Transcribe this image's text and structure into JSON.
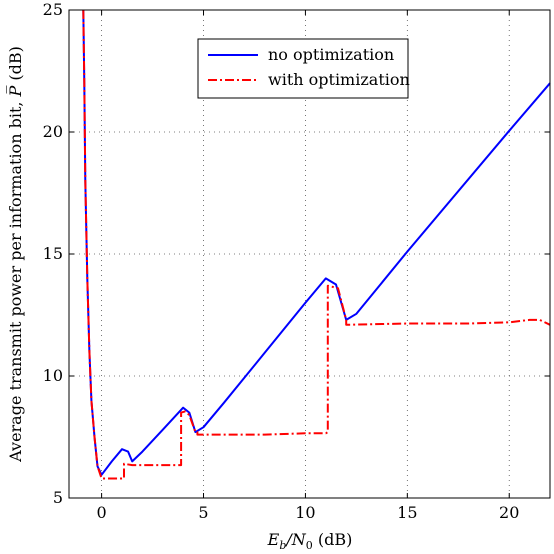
{
  "chart_data": {
    "type": "line",
    "xlabel_parts": {
      "e": "E",
      "b": "b",
      "slash": "/N",
      "zero": "0",
      "unit": " (dB)"
    },
    "ylabel_parts": {
      "text": "Average transmit power per information bit, ",
      "symbol": "P̅",
      "unit": " (dB)"
    },
    "xlim": [
      -1.6,
      22
    ],
    "ylim": [
      5,
      25
    ],
    "xticks": [
      0,
      5,
      10,
      15,
      20
    ],
    "yticks": [
      5,
      10,
      15,
      20,
      25
    ],
    "grid": true,
    "legend_position": "top-center",
    "series": [
      {
        "name": "no optimization",
        "color": "#0000ff",
        "style": "solid",
        "x": [
          -0.9,
          -0.85,
          -0.8,
          -0.7,
          -0.6,
          -0.5,
          -0.35,
          -0.2,
          0.0,
          0.5,
          1.0,
          1.3,
          1.5,
          2.0,
          3.0,
          4.0,
          4.3,
          4.6,
          5.0,
          6.0,
          8.0,
          10.0,
          11.0,
          11.5,
          12.0,
          12.5,
          15.0,
          20.0,
          22.0
        ],
        "y": [
          25.0,
          22.0,
          18.0,
          14.0,
          11.0,
          9.0,
          7.5,
          6.3,
          5.95,
          6.5,
          7.0,
          6.9,
          6.5,
          6.9,
          7.8,
          8.7,
          8.5,
          7.7,
          7.9,
          8.9,
          10.95,
          13.0,
          14.0,
          13.75,
          12.3,
          12.55,
          15.1,
          20.05,
          22.0
        ]
      },
      {
        "name": "with optimization",
        "color": "#ff0000",
        "style": "dashdot",
        "x": [
          -0.9,
          -0.85,
          -0.8,
          -0.7,
          -0.6,
          -0.5,
          -0.35,
          -0.2,
          0.0,
          0.5,
          1.0,
          1.1,
          1.1,
          1.5,
          2.0,
          3.0,
          3.9,
          3.9,
          4.1,
          4.3,
          4.6,
          4.7,
          4.7,
          6.0,
          8.0,
          10.0,
          11.0,
          11.1,
          11.1,
          11.6,
          12.0,
          12.0,
          15.0,
          18.0,
          20.0,
          21.0,
          21.5,
          22.0
        ],
        "y": [
          25.0,
          22.0,
          18.0,
          14.0,
          11.0,
          9.0,
          7.5,
          6.3,
          5.8,
          5.8,
          5.8,
          5.8,
          6.4,
          6.35,
          6.35,
          6.35,
          6.35,
          8.5,
          8.55,
          8.4,
          7.7,
          7.7,
          7.6,
          7.6,
          7.6,
          7.65,
          7.65,
          7.7,
          13.7,
          13.6,
          12.3,
          12.1,
          12.15,
          12.15,
          12.2,
          12.3,
          12.3,
          12.1
        ]
      }
    ]
  }
}
